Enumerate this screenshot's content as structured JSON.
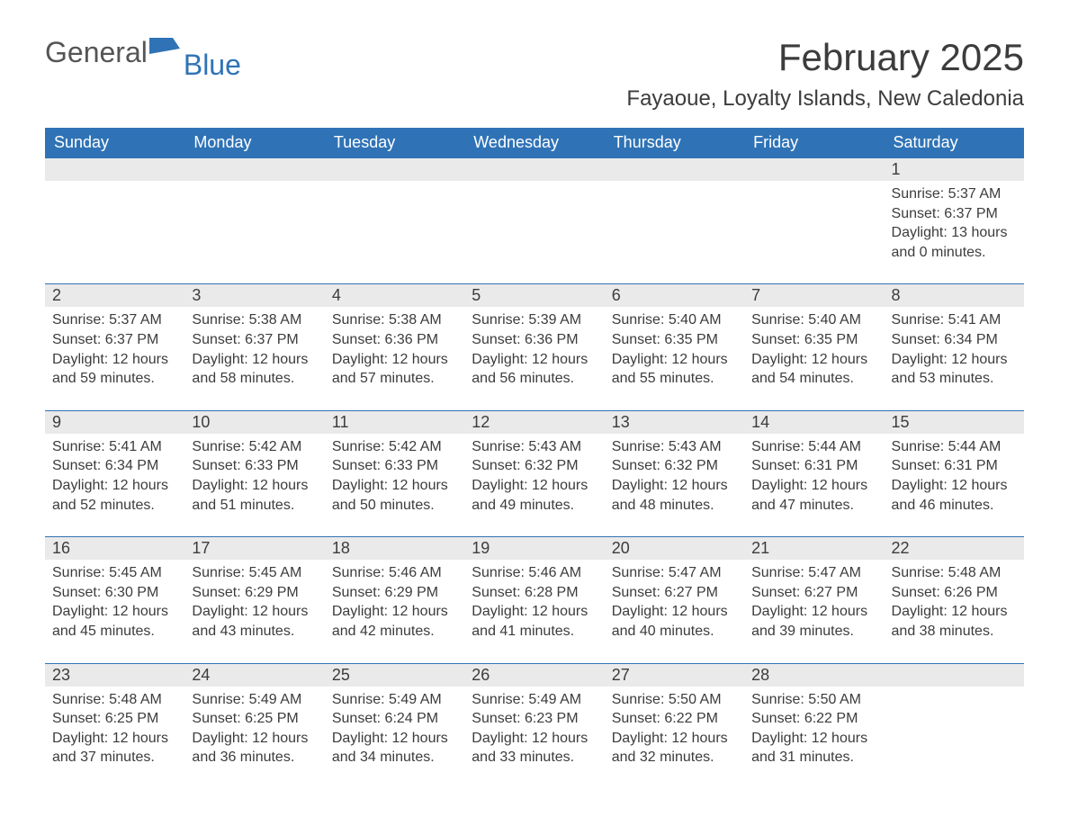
{
  "logo": {
    "text1": "General",
    "text2": "Blue"
  },
  "title": "February 2025",
  "location": "Fayaoue, Loyalty Islands, New Caledonia",
  "colors": {
    "header_bg": "#2f73b6",
    "header_text": "#ffffff",
    "date_bg": "#eaeaea",
    "text": "#3c3c3c",
    "rule": "#2f73b6",
    "page_bg": "#ffffff"
  },
  "fonts": {
    "title_pt": 42,
    "location_pt": 24,
    "dayhead_pt": 18,
    "date_pt": 18,
    "body_pt": 16
  },
  "day_headers": [
    "Sunday",
    "Monday",
    "Tuesday",
    "Wednesday",
    "Thursday",
    "Friday",
    "Saturday"
  ],
  "weeks": [
    [
      null,
      null,
      null,
      null,
      null,
      null,
      {
        "d": "1",
        "sunrise": "Sunrise: 5:37 AM",
        "sunset": "Sunset: 6:37 PM",
        "daylight": "Daylight: 13 hours and 0 minutes."
      }
    ],
    [
      {
        "d": "2",
        "sunrise": "Sunrise: 5:37 AM",
        "sunset": "Sunset: 6:37 PM",
        "daylight": "Daylight: 12 hours and 59 minutes."
      },
      {
        "d": "3",
        "sunrise": "Sunrise: 5:38 AM",
        "sunset": "Sunset: 6:37 PM",
        "daylight": "Daylight: 12 hours and 58 minutes."
      },
      {
        "d": "4",
        "sunrise": "Sunrise: 5:38 AM",
        "sunset": "Sunset: 6:36 PM",
        "daylight": "Daylight: 12 hours and 57 minutes."
      },
      {
        "d": "5",
        "sunrise": "Sunrise: 5:39 AM",
        "sunset": "Sunset: 6:36 PM",
        "daylight": "Daylight: 12 hours and 56 minutes."
      },
      {
        "d": "6",
        "sunrise": "Sunrise: 5:40 AM",
        "sunset": "Sunset: 6:35 PM",
        "daylight": "Daylight: 12 hours and 55 minutes."
      },
      {
        "d": "7",
        "sunrise": "Sunrise: 5:40 AM",
        "sunset": "Sunset: 6:35 PM",
        "daylight": "Daylight: 12 hours and 54 minutes."
      },
      {
        "d": "8",
        "sunrise": "Sunrise: 5:41 AM",
        "sunset": "Sunset: 6:34 PM",
        "daylight": "Daylight: 12 hours and 53 minutes."
      }
    ],
    [
      {
        "d": "9",
        "sunrise": "Sunrise: 5:41 AM",
        "sunset": "Sunset: 6:34 PM",
        "daylight": "Daylight: 12 hours and 52 minutes."
      },
      {
        "d": "10",
        "sunrise": "Sunrise: 5:42 AM",
        "sunset": "Sunset: 6:33 PM",
        "daylight": "Daylight: 12 hours and 51 minutes."
      },
      {
        "d": "11",
        "sunrise": "Sunrise: 5:42 AM",
        "sunset": "Sunset: 6:33 PM",
        "daylight": "Daylight: 12 hours and 50 minutes."
      },
      {
        "d": "12",
        "sunrise": "Sunrise: 5:43 AM",
        "sunset": "Sunset: 6:32 PM",
        "daylight": "Daylight: 12 hours and 49 minutes."
      },
      {
        "d": "13",
        "sunrise": "Sunrise: 5:43 AM",
        "sunset": "Sunset: 6:32 PM",
        "daylight": "Daylight: 12 hours and 48 minutes."
      },
      {
        "d": "14",
        "sunrise": "Sunrise: 5:44 AM",
        "sunset": "Sunset: 6:31 PM",
        "daylight": "Daylight: 12 hours and 47 minutes."
      },
      {
        "d": "15",
        "sunrise": "Sunrise: 5:44 AM",
        "sunset": "Sunset: 6:31 PM",
        "daylight": "Daylight: 12 hours and 46 minutes."
      }
    ],
    [
      {
        "d": "16",
        "sunrise": "Sunrise: 5:45 AM",
        "sunset": "Sunset: 6:30 PM",
        "daylight": "Daylight: 12 hours and 45 minutes."
      },
      {
        "d": "17",
        "sunrise": "Sunrise: 5:45 AM",
        "sunset": "Sunset: 6:29 PM",
        "daylight": "Daylight: 12 hours and 43 minutes."
      },
      {
        "d": "18",
        "sunrise": "Sunrise: 5:46 AM",
        "sunset": "Sunset: 6:29 PM",
        "daylight": "Daylight: 12 hours and 42 minutes."
      },
      {
        "d": "19",
        "sunrise": "Sunrise: 5:46 AM",
        "sunset": "Sunset: 6:28 PM",
        "daylight": "Daylight: 12 hours and 41 minutes."
      },
      {
        "d": "20",
        "sunrise": "Sunrise: 5:47 AM",
        "sunset": "Sunset: 6:27 PM",
        "daylight": "Daylight: 12 hours and 40 minutes."
      },
      {
        "d": "21",
        "sunrise": "Sunrise: 5:47 AM",
        "sunset": "Sunset: 6:27 PM",
        "daylight": "Daylight: 12 hours and 39 minutes."
      },
      {
        "d": "22",
        "sunrise": "Sunrise: 5:48 AM",
        "sunset": "Sunset: 6:26 PM",
        "daylight": "Daylight: 12 hours and 38 minutes."
      }
    ],
    [
      {
        "d": "23",
        "sunrise": "Sunrise: 5:48 AM",
        "sunset": "Sunset: 6:25 PM",
        "daylight": "Daylight: 12 hours and 37 minutes."
      },
      {
        "d": "24",
        "sunrise": "Sunrise: 5:49 AM",
        "sunset": "Sunset: 6:25 PM",
        "daylight": "Daylight: 12 hours and 36 minutes."
      },
      {
        "d": "25",
        "sunrise": "Sunrise: 5:49 AM",
        "sunset": "Sunset: 6:24 PM",
        "daylight": "Daylight: 12 hours and 34 minutes."
      },
      {
        "d": "26",
        "sunrise": "Sunrise: 5:49 AM",
        "sunset": "Sunset: 6:23 PM",
        "daylight": "Daylight: 12 hours and 33 minutes."
      },
      {
        "d": "27",
        "sunrise": "Sunrise: 5:50 AM",
        "sunset": "Sunset: 6:22 PM",
        "daylight": "Daylight: 12 hours and 32 minutes."
      },
      {
        "d": "28",
        "sunrise": "Sunrise: 5:50 AM",
        "sunset": "Sunset: 6:22 PM",
        "daylight": "Daylight: 12 hours and 31 minutes."
      },
      null
    ]
  ]
}
